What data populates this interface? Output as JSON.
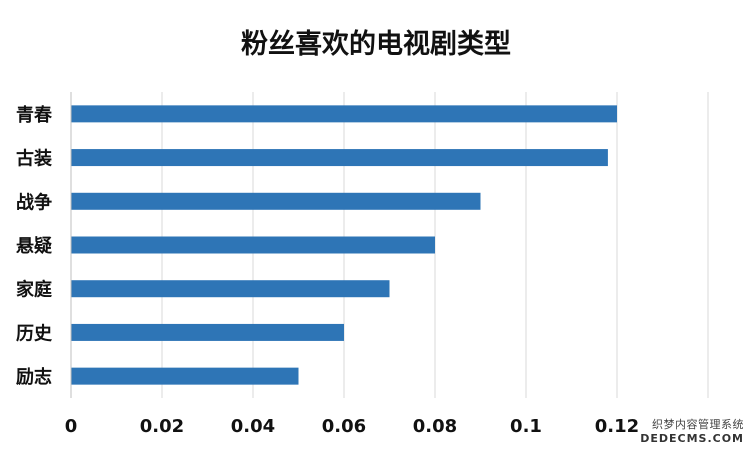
{
  "chart_data": {
    "type": "bar",
    "orientation": "horizontal",
    "title": "粉丝喜欢的电视剧类型",
    "categories": [
      "青春",
      "古装",
      "战争",
      "悬疑",
      "家庭",
      "历史",
      "励志"
    ],
    "values": [
      0.12,
      0.118,
      0.09,
      0.08,
      0.07,
      0.06,
      0.05
    ],
    "xlim": [
      0,
      0.14
    ],
    "xticks": [
      "0",
      "0.02",
      "0.04",
      "0.06",
      "0.08",
      "0.1",
      "0.12"
    ],
    "grid": true,
    "legend": "none",
    "bar_color": "#2E75B6"
  },
  "watermark": {
    "line1": "织梦内容管理系统",
    "line2": "DEDECMS.COM"
  }
}
